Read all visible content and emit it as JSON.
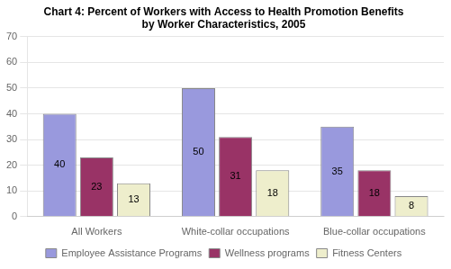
{
  "chart_data": {
    "type": "bar",
    "title": "Chart 4: Percent of Workers with Access to Health Promotion Benefits",
    "subtitle": "by Worker Characteristics, 2005",
    "categories": [
      "All Workers",
      "White-collar occupations",
      "Blue-collar occupations"
    ],
    "series": [
      {
        "name": "Employee Assistance Programs",
        "color": "#9999dd",
        "values": [
          40,
          50,
          35
        ]
      },
      {
        "name": "Wellness programs",
        "color": "#993366",
        "values": [
          23,
          31,
          18
        ]
      },
      {
        "name": "Fitness Centers",
        "color": "#eeeecc",
        "values": [
          13,
          18,
          8
        ]
      }
    ],
    "ylim": [
      0,
      70
    ],
    "yticks": [
      0,
      10,
      20,
      30,
      40,
      50,
      60,
      70
    ],
    "grid": true,
    "legend": "bottom",
    "data_labels": true
  }
}
